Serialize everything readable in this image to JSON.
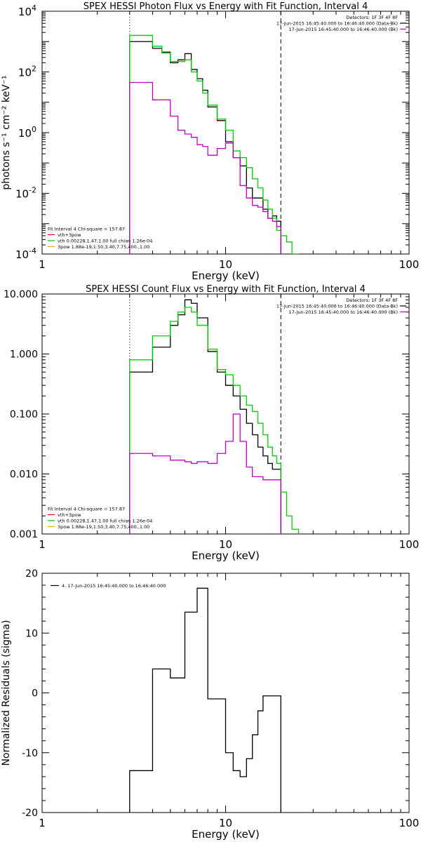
{
  "chart_data": [
    {
      "type": "line",
      "title": "SPEX HESSI Photon Flux vs Energy with Fit Function, Interval 4",
      "xlabel": "Energy (keV)",
      "ylabel": "photons s⁻¹ cm⁻² keV⁻¹",
      "xscale": "log",
      "yscale": "log",
      "xlim": [
        1,
        100
      ],
      "ylim": [
        0.0001,
        10000
      ],
      "x_ticks": [
        {
          "v": 1,
          "label": "1"
        },
        {
          "v": 10,
          "label": "10"
        },
        {
          "v": 100,
          "label": "100"
        }
      ],
      "y_ticks": [
        {
          "v": 10000,
          "base": "10",
          "exp": "4"
        },
        {
          "v": 100,
          "base": "10",
          "exp": "2"
        },
        {
          "v": 1,
          "base": "10",
          "exp": "0"
        },
        {
          "v": 0.01,
          "base": "10",
          "exp": "-2"
        },
        {
          "v": 0.0001,
          "base": "10",
          "exp": "-4"
        }
      ],
      "vlines": [
        {
          "x": 3.0,
          "style": "dotted"
        },
        {
          "x": 20.0,
          "style": "dashed"
        }
      ],
      "legend_topright": [
        {
          "text": "Detectors: 1F 3F 4F 8F",
          "color": ""
        },
        {
          "text": "17-Jun-2015 16:45:40.000 to 16:46:40.000 (Data-Bk)",
          "color": "#000000"
        },
        {
          "text": "17-Jun-2015 16:45:40.000 to 16:46:40.000 (Bk)",
          "color": "#c000c0"
        }
      ],
      "legend_bottomleft": [
        {
          "text": "Fit Interval  4    Chi-square = 157.87",
          "color": ""
        },
        {
          "text": "vth+3pow",
          "color": "#cc0000"
        },
        {
          "text": "vth 0.00228,1.47,1.00  full chian 1.26e-04",
          "color": "#00bb00"
        },
        {
          "text": "3pow 1.88e-19,1.50,3.40,7.75,400.,1.00",
          "color": "#e8a800"
        }
      ],
      "series": [
        {
          "name": "Data-Bk",
          "color": "#000000",
          "drop_last": true,
          "edges": [
            3.0,
            3.4,
            4.0,
            4.5,
            5.0,
            5.5,
            6.0,
            6.5,
            7.0,
            7.5,
            8.0,
            9.0,
            10.0,
            11.0,
            12.0,
            13.0,
            14.0,
            15.0,
            16.0,
            17.0,
            18.0,
            19.0,
            20.0
          ],
          "values": [
            1000,
            1000,
            600,
            450,
            200,
            250,
            400,
            120,
            60,
            25,
            7,
            2.5,
            0.5,
            0.15,
            0.08,
            0.015,
            0.007,
            0.007,
            0.003,
            0.0015,
            0.0018,
            0.0012
          ]
        },
        {
          "name": "Fit (green)",
          "color": "#00cc00",
          "drop_last": true,
          "edges": [
            3.0,
            3.4,
            4.0,
            4.5,
            5.0,
            5.5,
            6.0,
            6.5,
            7.0,
            7.5,
            8.0,
            9.0,
            10.0,
            11.0,
            12.0,
            13.0,
            14.0,
            15.0,
            16.0,
            17.0,
            18.0,
            19.0,
            20.0,
            21.5,
            23.0,
            25.0
          ],
          "values": [
            1600,
            1600,
            700,
            420,
            220,
            220,
            250,
            100,
            50,
            20,
            8,
            2.8,
            1.2,
            0.25,
            0.15,
            0.07,
            0.03,
            0.015,
            0.006,
            0.003,
            0.0015,
            0.0006,
            0.0004,
            0.00025,
            0.0001
          ]
        },
        {
          "name": "Bk",
          "color": "#c000c0",
          "drop_last": true,
          "edges": [
            3.0,
            3.4,
            4.0,
            4.5,
            5.0,
            5.5,
            6.0,
            6.5,
            7.0,
            7.5,
            8.0,
            9.0,
            10.0,
            11.0,
            12.0,
            13.0,
            14.0,
            15.0,
            16.0,
            17.0,
            18.0,
            19.0,
            20.0
          ],
          "values": [
            45,
            45,
            12,
            12,
            3.5,
            1.2,
            0.9,
            0.7,
            0.4,
            0.35,
            0.18,
            0.3,
            0.45,
            0.15,
            0.018,
            0.007,
            0.004,
            0.0035,
            0.0025,
            0.0015,
            0.0012,
            0.0008
          ]
        }
      ]
    },
    {
      "type": "line",
      "title": "SPEX HESSI Count Flux vs Energy with Fit Function, Interval 4",
      "xlabel": "Energy (keV)",
      "ylabel": "",
      "xscale": "log",
      "yscale": "log",
      "xlim": [
        1,
        100
      ],
      "ylim": [
        0.001,
        10
      ],
      "x_ticks": [
        {
          "v": 1,
          "label": "1"
        },
        {
          "v": 10,
          "label": "10"
        },
        {
          "v": 100,
          "label": "100"
        }
      ],
      "y_ticks": [
        {
          "v": 10,
          "label": "10.000"
        },
        {
          "v": 1,
          "label": "1.000"
        },
        {
          "v": 0.1,
          "label": "0.100"
        },
        {
          "v": 0.01,
          "label": "0.010"
        },
        {
          "v": 0.001,
          "label": "0.001"
        }
      ],
      "vlines": [
        {
          "x": 3.0,
          "style": "dotted"
        },
        {
          "x": 20.0,
          "style": "dashed"
        }
      ],
      "legend_topright": [
        {
          "text": "Detectors: 1F 3F 4F 8F",
          "color": ""
        },
        {
          "text": "17-Jun-2015 16:45:40.000 to 16:46:40.000 (Data-Bk)",
          "color": "#000000"
        },
        {
          "text": "17-Jun-2015 16:45:40.000 to 16:46:40.000 (Bk)",
          "color": "#c000c0"
        }
      ],
      "legend_bottomleft": [
        {
          "text": "Fit Interval  4    Chi-square = 157.87",
          "color": ""
        },
        {
          "text": "vth+3pow",
          "color": "#cc0000"
        },
        {
          "text": "vth 0.00228,1.47,1.00  full chian 1.26e-04",
          "color": "#00bb00"
        },
        {
          "text": "3pow 1.88e-19,1.50,3.40,7.75,400.,1.00",
          "color": "#e8a800"
        }
      ],
      "series": [
        {
          "name": "Data-Bk",
          "color": "#000000",
          "drop_last": true,
          "edges": [
            3.0,
            4.0,
            5.0,
            5.5,
            6.0,
            6.5,
            7.0,
            8.0,
            9.0,
            10.0,
            11.0,
            12.0,
            13.0,
            14.0,
            15.0,
            16.0,
            17.0,
            18.0,
            19.0,
            20.0
          ],
          "values": [
            0.5,
            1.3,
            3.0,
            4.5,
            8.0,
            7.0,
            4.0,
            1.1,
            0.5,
            0.3,
            0.2,
            0.12,
            0.07,
            0.045,
            0.028,
            0.02,
            0.015,
            0.012,
            0.012
          ]
        },
        {
          "name": "Fit (green)",
          "color": "#00cc00",
          "drop_last": true,
          "edges": [
            3.0,
            4.0,
            5.0,
            5.5,
            6.0,
            6.5,
            7.0,
            8.0,
            9.0,
            10.0,
            11.0,
            12.0,
            13.0,
            14.0,
            15.0,
            16.0,
            17.0,
            18.0,
            19.0,
            20.0,
            21.5,
            23.0,
            25.0
          ],
          "values": [
            0.8,
            2.0,
            3.5,
            5.0,
            6.0,
            5.0,
            3.0,
            1.2,
            0.55,
            0.45,
            0.3,
            0.2,
            0.14,
            0.11,
            0.07,
            0.045,
            0.028,
            0.02,
            0.015,
            0.005,
            0.002,
            0.0012
          ]
        },
        {
          "name": "Bk",
          "color": "#c000c0",
          "drop_last": true,
          "edges": [
            3.0,
            4.0,
            5.0,
            5.5,
            6.0,
            6.5,
            7.0,
            8.0,
            9.0,
            10.0,
            11.0,
            12.0,
            13.0,
            14.0,
            15.0,
            16.0,
            17.0,
            18.0,
            19.0,
            20.0
          ],
          "values": [
            0.022,
            0.02,
            0.017,
            0.017,
            0.016,
            0.015,
            0.016,
            0.015,
            0.022,
            0.035,
            0.1,
            0.035,
            0.013,
            0.009,
            0.009,
            0.008,
            0.008,
            0.008,
            0.008
          ]
        }
      ]
    },
    {
      "type": "line",
      "title": "",
      "xlabel": "Energy (keV)",
      "ylabel": "Normalized Residuals (sigma)",
      "xscale": "log",
      "yscale": "linear",
      "xlim": [
        1,
        100
      ],
      "ylim": [
        -20,
        20
      ],
      "x_ticks": [
        {
          "v": 1,
          "label": "1"
        },
        {
          "v": 10,
          "label": "10"
        },
        {
          "v": 100,
          "label": "100"
        }
      ],
      "y_ticks": [
        {
          "v": 20,
          "label": "20"
        },
        {
          "v": 10,
          "label": "10"
        },
        {
          "v": 0,
          "label": "0"
        },
        {
          "v": -10,
          "label": "-10"
        },
        {
          "v": -20,
          "label": "-20"
        }
      ],
      "vlines": [],
      "legend_topright": [],
      "legend_bottomleft": [],
      "legend_topleft": [
        {
          "text": "4. 17-Jun-2015 16:45:40.000 to 16:46:40.000",
          "color": "#000000"
        }
      ],
      "series": [
        {
          "name": "4. 17-Jun-2015 16:45:40.000 to 16:46:40.000",
          "color": "#000000",
          "drop_last": false,
          "edges": [
            3.0,
            3.4,
            4.0,
            4.5,
            5.0,
            5.5,
            6.0,
            6.5,
            7.0,
            7.5,
            8.0,
            9.0,
            10.0,
            11.0,
            12.0,
            13.0,
            14.0,
            15.0,
            16.0,
            17.0,
            18.0,
            19.0,
            20.0
          ],
          "values": [
            -13,
            -13,
            4,
            4,
            2.5,
            2.5,
            13.5,
            13.5,
            17.5,
            17.5,
            -1,
            -1,
            -10,
            -13,
            -14,
            -11,
            -7,
            -3,
            -0.5,
            -0.5,
            -0.5,
            -0.5
          ]
        }
      ]
    }
  ]
}
